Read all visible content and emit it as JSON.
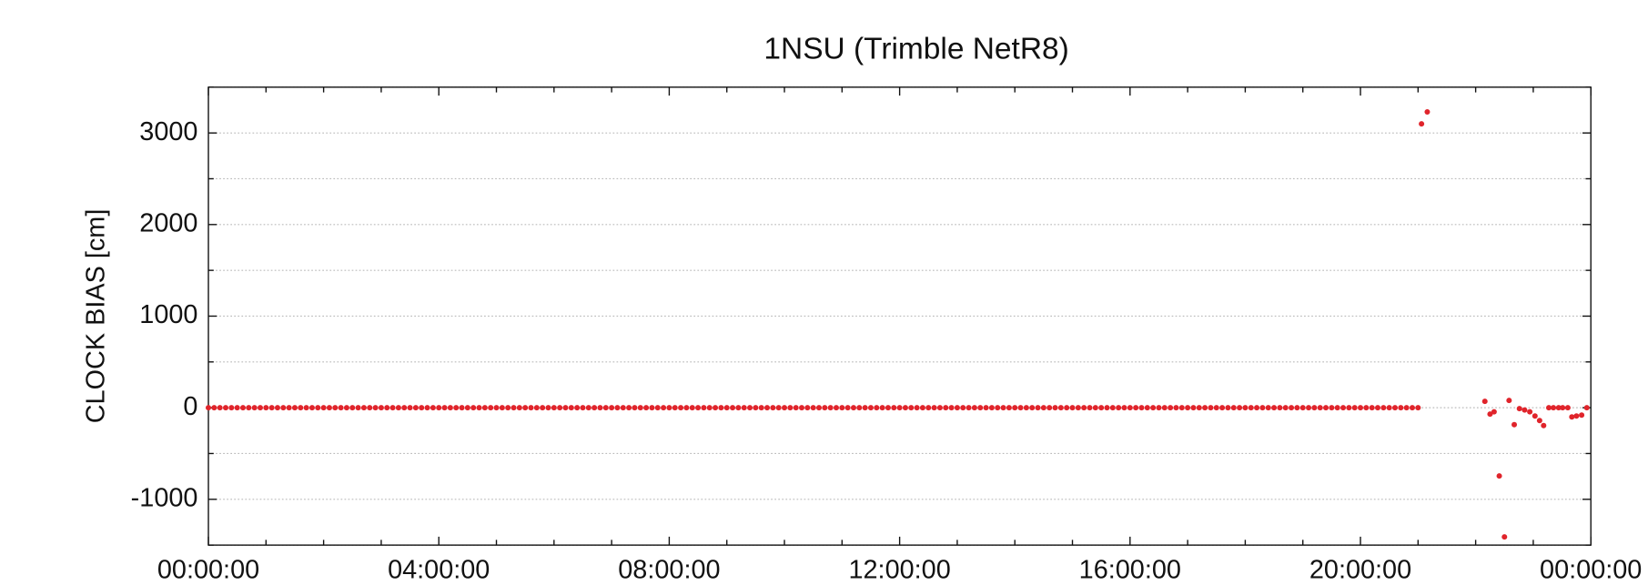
{
  "chart_data": {
    "type": "scatter",
    "title": "1NSU (Trimble NetR8)",
    "ylabel": "CLOCK BIAS [cm]",
    "xlim": [
      0,
      24
    ],
    "ylim": [
      -1500,
      3500
    ],
    "xticks": [
      {
        "value": 0,
        "label": "00:00:00"
      },
      {
        "value": 4,
        "label": "04:00:00"
      },
      {
        "value": 8,
        "label": "08:00:00"
      },
      {
        "value": 12,
        "label": "12:00:00"
      },
      {
        "value": 16,
        "label": "16:00:00"
      },
      {
        "value": 20,
        "label": "20:00:00"
      },
      {
        "value": 24,
        "label": "00:00:00"
      }
    ],
    "xminor_ticks": [
      1,
      2,
      3,
      5,
      6,
      7,
      9,
      10,
      11,
      13,
      14,
      15,
      17,
      18,
      19,
      21,
      22,
      23
    ],
    "yticks": [
      -1000,
      0,
      1000,
      2000,
      3000
    ],
    "yminor_ticks": [
      -1500,
      -500,
      500,
      1500,
      2500,
      3500
    ],
    "grid": true,
    "series": [
      {
        "name": "clock bias",
        "color": "#e0242b",
        "x": [
          0,
          0.1,
          0.2,
          0.3,
          0.4,
          0.5,
          0.6,
          0.7,
          0.8,
          0.9,
          1,
          1.1,
          1.2,
          1.3,
          1.4,
          1.5,
          1.6,
          1.7,
          1.8,
          1.9,
          2,
          2.1,
          2.2,
          2.3,
          2.4,
          2.5,
          2.6,
          2.7,
          2.8,
          2.9,
          3,
          3.1,
          3.2,
          3.3,
          3.4,
          3.5,
          3.6,
          3.7,
          3.8,
          3.9,
          4,
          4.1,
          4.2,
          4.3,
          4.4,
          4.5,
          4.6,
          4.7,
          4.8,
          4.9,
          5,
          5.1,
          5.2,
          5.3,
          5.4,
          5.5,
          5.6,
          5.7,
          5.8,
          5.9,
          6,
          6.1,
          6.2,
          6.3,
          6.4,
          6.5,
          6.6,
          6.7,
          6.8,
          6.9,
          7,
          7.1,
          7.2,
          7.3,
          7.4,
          7.5,
          7.6,
          7.7,
          7.8,
          7.9,
          8,
          8.1,
          8.2,
          8.3,
          8.4,
          8.5,
          8.6,
          8.7,
          8.8,
          8.9,
          9,
          9.1,
          9.2,
          9.3,
          9.4,
          9.5,
          9.6,
          9.7,
          9.8,
          9.9,
          10,
          10.1,
          10.2,
          10.3,
          10.4,
          10.5,
          10.6,
          10.7,
          10.8,
          10.9,
          11,
          11.1,
          11.2,
          11.3,
          11.4,
          11.5,
          11.6,
          11.7,
          11.8,
          11.9,
          12,
          12.1,
          12.2,
          12.3,
          12.4,
          12.5,
          12.6,
          12.7,
          12.8,
          12.9,
          13,
          13.1,
          13.2,
          13.3,
          13.4,
          13.5,
          13.6,
          13.7,
          13.8,
          13.9,
          14,
          14.1,
          14.2,
          14.3,
          14.4,
          14.5,
          14.6,
          14.7,
          14.8,
          14.9,
          15,
          15.1,
          15.2,
          15.3,
          15.4,
          15.5,
          15.6,
          15.7,
          15.8,
          15.9,
          16,
          16.1,
          16.2,
          16.3,
          16.4,
          16.5,
          16.6,
          16.7,
          16.8,
          16.9,
          17,
          17.1,
          17.2,
          17.3,
          17.4,
          17.5,
          17.6,
          17.7,
          17.8,
          17.9,
          18,
          18.1,
          18.2,
          18.3,
          18.4,
          18.5,
          18.6,
          18.7,
          18.8,
          18.9,
          19,
          19.1,
          19.2,
          19.3,
          19.4,
          19.5,
          19.6,
          19.7,
          19.8,
          19.9,
          20,
          20.1,
          20.2,
          20.3,
          20.4,
          20.5,
          20.6,
          20.7,
          20.8,
          20.9,
          21,
          21.06,
          21.16,
          22.16,
          22.25,
          22.32,
          22.41,
          22.5,
          22.58,
          22.67,
          22.76,
          22.85,
          22.94,
          23.03,
          23.11,
          23.18,
          23.27,
          23.35,
          23.44,
          23.51,
          23.6,
          23.67,
          23.75,
          23.84,
          23.93
        ],
        "values": [
          0,
          0,
          0,
          0,
          0,
          0,
          0,
          0,
          0,
          0,
          0,
          0,
          0,
          0,
          0,
          0,
          0,
          0,
          0,
          0,
          0,
          0,
          0,
          0,
          0,
          0,
          0,
          0,
          0,
          0,
          0,
          0,
          0,
          0,
          0,
          0,
          0,
          0,
          0,
          0,
          0,
          0,
          0,
          0,
          0,
          0,
          0,
          0,
          0,
          0,
          0,
          0,
          0,
          0,
          0,
          0,
          0,
          0,
          0,
          0,
          0,
          0,
          0,
          0,
          0,
          0,
          0,
          0,
          0,
          0,
          0,
          0,
          0,
          0,
          0,
          0,
          0,
          0,
          0,
          0,
          0,
          0,
          0,
          0,
          0,
          0,
          0,
          0,
          0,
          0,
          0,
          0,
          0,
          0,
          0,
          0,
          0,
          0,
          0,
          0,
          0,
          0,
          0,
          0,
          0,
          0,
          0,
          0,
          0,
          0,
          0,
          0,
          0,
          0,
          0,
          0,
          0,
          0,
          0,
          0,
          0,
          0,
          0,
          0,
          0,
          0,
          0,
          0,
          0,
          0,
          0,
          0,
          0,
          0,
          0,
          0,
          0,
          0,
          0,
          0,
          0,
          0,
          0,
          0,
          0,
          0,
          0,
          0,
          0,
          0,
          0,
          0,
          0,
          0,
          0,
          0,
          0,
          0,
          0,
          0,
          0,
          0,
          0,
          0,
          0,
          0,
          0,
          0,
          0,
          0,
          0,
          0,
          0,
          0,
          0,
          0,
          0,
          0,
          0,
          0,
          0,
          0,
          0,
          0,
          0,
          0,
          0,
          0,
          0,
          0,
          0,
          0,
          0,
          0,
          0,
          0,
          0,
          0,
          0,
          0,
          0,
          0,
          0,
          0,
          0,
          0,
          0,
          0,
          0,
          0,
          0,
          3100,
          3230,
          70,
          -70,
          -45,
          -745,
          -1410,
          80,
          -185,
          -10,
          -25,
          -45,
          -90,
          -140,
          -195,
          0,
          0,
          0,
          0,
          0,
          -100,
          -90,
          -80,
          0
        ]
      }
    ]
  }
}
